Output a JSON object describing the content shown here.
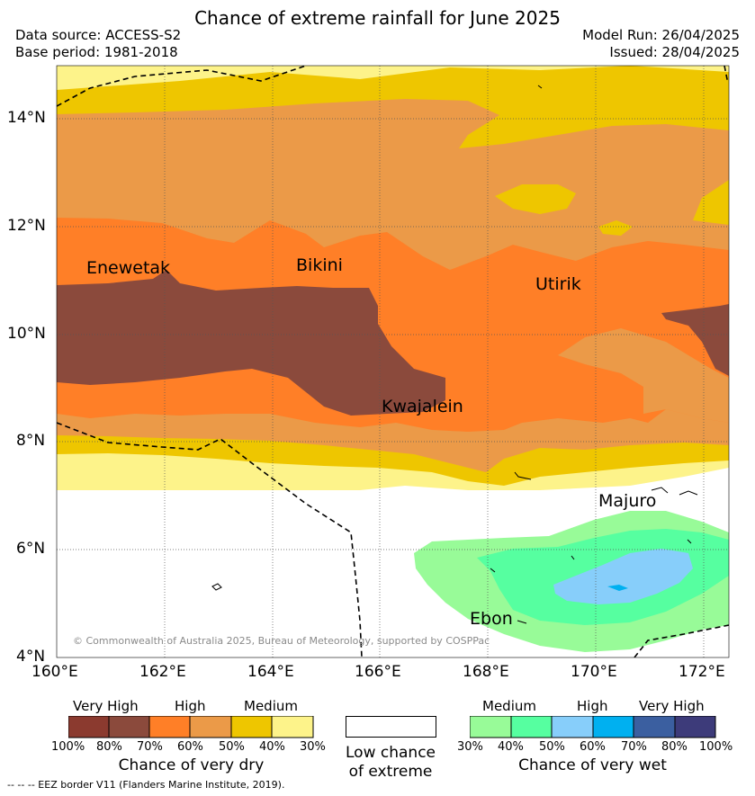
{
  "header": {
    "title": "Chance of extreme rainfall for June 2025",
    "data_source": "Data source: ACCESS-S2",
    "base_period": "Base period: 1981-2018",
    "model_run": "Model Run: 26/04/2025",
    "issued": "Issued: 28/04/2025"
  },
  "map": {
    "lat_labels": [
      "14°N",
      "12°N",
      "10°N",
      "8°N",
      "6°N",
      "4°N"
    ],
    "lon_labels": [
      "160°E",
      "162°E",
      "164°E",
      "166°E",
      "168°E",
      "170°E",
      "172°E"
    ],
    "places": [
      "Enewetak",
      "Bikini",
      "Utirik",
      "Kwajalein",
      "Majuro",
      "Ebon"
    ],
    "copyright": "© Commonwealth of Australia 2025, Bureau of Meteorology, supported by COSPPac",
    "colors": {
      "dry_100_80": "#8b3a2f",
      "dry_80_70": "#8b4a3c",
      "dry_70_60": "#ff7f27",
      "dry_60_50": "#eb9a48",
      "dry_50_40": "#eec600",
      "dry_40_30": "#fdf38a",
      "wet_30_40": "#98fb98",
      "wet_40_50": "#56ffa0",
      "wet_50_60": "#87cefa",
      "wet_60_70": "#00b0f0",
      "wet_70_80": "#3b5fa0",
      "wet_80_100": "#3d3b7a",
      "low_chance": "#ffffff"
    }
  },
  "legend": {
    "dry": {
      "headers": [
        "Very High",
        "High",
        "Medium"
      ],
      "ticks": [
        "100%",
        "80%",
        "70%",
        "60%",
        "50%",
        "40%",
        "30%"
      ],
      "title": "Chance of very dry"
    },
    "neutral": {
      "title_line1": "Low chance",
      "title_line2": "of extreme"
    },
    "wet": {
      "headers": [
        "Medium",
        "High",
        "Very High"
      ],
      "ticks": [
        "30%",
        "40%",
        "50%",
        "60%",
        "70%",
        "80%",
        "100%"
      ],
      "title": "Chance of very wet"
    }
  },
  "footnote": "--  --  -- EEZ border V11 (Flanders Marine Institute, 2019)."
}
